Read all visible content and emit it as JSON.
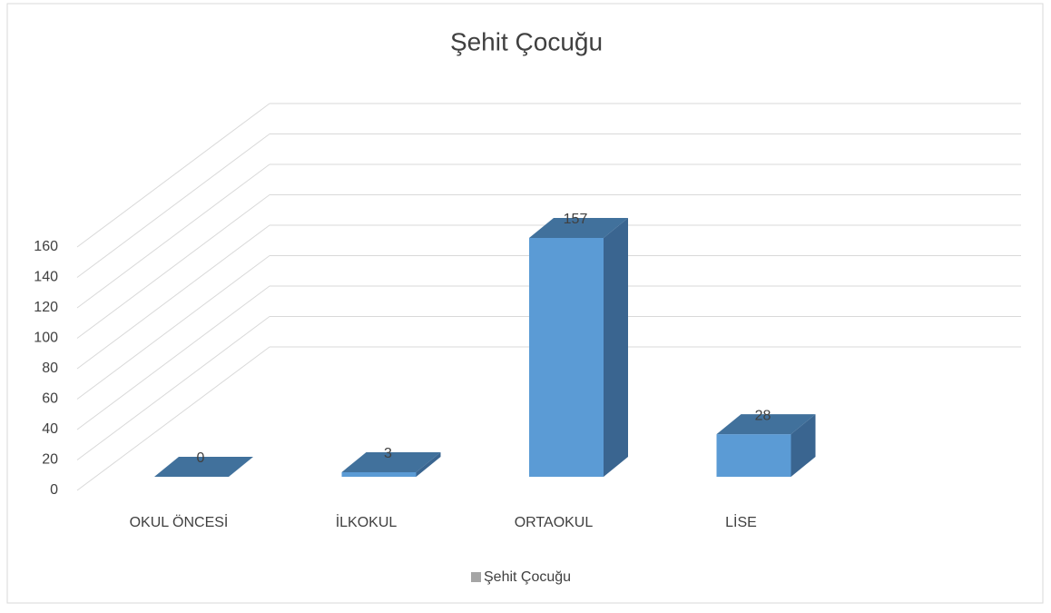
{
  "chart_data": {
    "type": "bar3d",
    "title": "Şehit Çocuğu",
    "categories": [
      "OKUL ÖNCESİ",
      "İLKOKUL",
      "ORTAOKUL",
      "LİSE"
    ],
    "series": [
      {
        "name": "Şehit Çocuğu",
        "color": "#5b9bd5",
        "values": [
          0,
          3,
          157,
          28
        ]
      }
    ],
    "ylim": [
      0,
      160
    ],
    "yticks": [
      0,
      20,
      40,
      60,
      80,
      100,
      120,
      140,
      160
    ],
    "grid": true,
    "legend": "bottom"
  }
}
